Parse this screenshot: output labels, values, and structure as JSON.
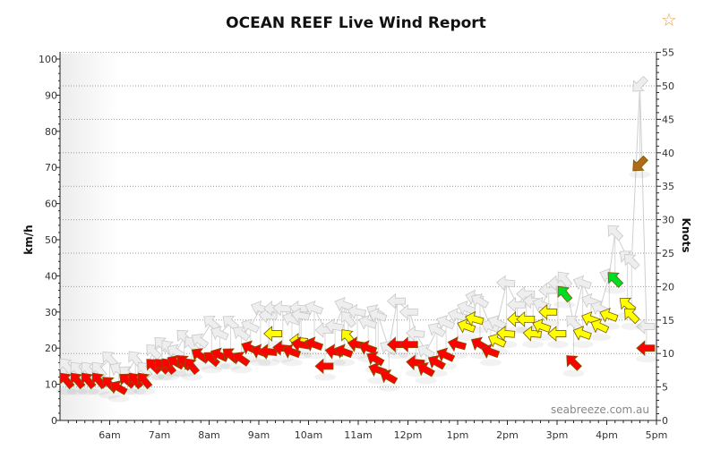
{
  "header": {
    "title": "OCEAN REEF Live Wind Report",
    "favourite_icon": "star-outline-icon"
  },
  "chart_data": {
    "type": "scatter",
    "title": "OCEAN REEF Live Wind Report",
    "ylabel_left": "km/h",
    "ylabel_right": "Knots",
    "ylim_left": [
      0,
      100
    ],
    "ylim_right": [
      0,
      55
    ],
    "yticks_left": [
      "0",
      "10",
      "20",
      "30",
      "40",
      "50",
      "60",
      "70",
      "80",
      "90",
      "100"
    ],
    "yticks_right": [
      "0",
      "5",
      "10",
      "15",
      "20",
      "25",
      "30",
      "35",
      "40",
      "45",
      "50",
      "55"
    ],
    "xticks": [
      "6am",
      "7am",
      "8am",
      "9am",
      "10am",
      "11am",
      "12pm",
      "1pm",
      "2pm",
      "3pm",
      "4pm",
      "5pm"
    ],
    "xlim": [
      "5:00",
      "17:00"
    ],
    "grid": "horizontal dotted at knot ticks",
    "watermark": "seabreeze.com.au",
    "colors": {
      "red": "#ff0000",
      "yellow": "#ffff00",
      "green": "#00dd22",
      "brown": "#b06a1a",
      "gust": "#eeeeee"
    },
    "points": [
      {
        "t": "5:08",
        "avg": 11,
        "gust": 15,
        "dir": 140,
        "color": "red"
      },
      {
        "t": "5:21",
        "avg": 11,
        "gust": 14,
        "dir": 140,
        "color": "red"
      },
      {
        "t": "5:34",
        "avg": 11,
        "gust": 14,
        "dir": 140,
        "color": "red"
      },
      {
        "t": "5:47",
        "avg": 11,
        "gust": 14,
        "dir": 140,
        "color": "red"
      },
      {
        "t": "6:00",
        "avg": 10,
        "gust": 17,
        "dir": 135,
        "color": "red"
      },
      {
        "t": "6:11",
        "avg": 9,
        "gust": 14,
        "dir": 120,
        "color": "red"
      },
      {
        "t": "6:21",
        "avg": 11,
        "gust": 13,
        "dir": 130,
        "color": "red"
      },
      {
        "t": "6:31",
        "avg": 11,
        "gust": 17,
        "dir": 140,
        "color": "red"
      },
      {
        "t": "6:42",
        "avg": 11,
        "gust": 14,
        "dir": 140,
        "color": "red"
      },
      {
        "t": "6:53",
        "avg": 15,
        "gust": 19,
        "dir": 135,
        "color": "red"
      },
      {
        "t": "7:03",
        "avg": 15,
        "gust": 21,
        "dir": 135,
        "color": "red"
      },
      {
        "t": "7:11",
        "avg": 15,
        "gust": 20,
        "dir": 140,
        "color": "red"
      },
      {
        "t": "7:20",
        "avg": 16,
        "gust": 19,
        "dir": 120,
        "color": "red"
      },
      {
        "t": "7:30",
        "avg": 16,
        "gust": 23,
        "dir": 135,
        "color": "red"
      },
      {
        "t": "7:39",
        "avg": 15,
        "gust": 21,
        "dir": 140,
        "color": "red"
      },
      {
        "t": "7:49",
        "avg": 18,
        "gust": 22,
        "dir": 125,
        "color": "red"
      },
      {
        "t": "8:03",
        "avg": 17,
        "gust": 27,
        "dir": 130,
        "color": "red"
      },
      {
        "t": "8:13",
        "avg": 18,
        "gust": 24,
        "dir": 115,
        "color": "red"
      },
      {
        "t": "8:26",
        "avg": 18,
        "gust": 27,
        "dir": 130,
        "color": "red"
      },
      {
        "t": "8:39",
        "avg": 17,
        "gust": 24,
        "dir": 125,
        "color": "red"
      },
      {
        "t": "8:50",
        "avg": 20,
        "gust": 26,
        "dir": 115,
        "color": "red"
      },
      {
        "t": "9:02",
        "avg": 19,
        "gust": 31,
        "dir": 110,
        "color": "red"
      },
      {
        "t": "9:12",
        "avg": 19,
        "gust": 29,
        "dir": 95,
        "color": "red"
      },
      {
        "t": "9:18",
        "avg": 24,
        "gust": 31,
        "dir": 90,
        "color": "yellow"
      },
      {
        "t": "9:29",
        "avg": 20,
        "gust": 31,
        "dir": 95,
        "color": "red"
      },
      {
        "t": "9:40",
        "avg": 19,
        "gust": 28,
        "dir": 110,
        "color": "red"
      },
      {
        "t": "9:49",
        "avg": 22,
        "gust": 31,
        "dir": 95,
        "color": "yellow"
      },
      {
        "t": "9:51",
        "avg": 21,
        "gust": 29,
        "dir": 100,
        "color": "red"
      },
      {
        "t": "10:07",
        "avg": 21,
        "gust": 31,
        "dir": 110,
        "color": "red"
      },
      {
        "t": "10:20",
        "avg": 15,
        "gust": 25,
        "dir": 90,
        "color": "red"
      },
      {
        "t": "10:32",
        "avg": 19,
        "gust": 26,
        "dir": 100,
        "color": "red"
      },
      {
        "t": "10:43",
        "avg": 19,
        "gust": 32,
        "dir": 110,
        "color": "red"
      },
      {
        "t": "10:48",
        "avg": 23,
        "gust": 28,
        "dir": 140,
        "color": "yellow"
      },
      {
        "t": "10:59",
        "avg": 21,
        "gust": 30,
        "dir": 100,
        "color": "red"
      },
      {
        "t": "11:12",
        "avg": 20,
        "gust": 27,
        "dir": 110,
        "color": "red"
      },
      {
        "t": "11:21",
        "avg": 17,
        "gust": 30,
        "dir": 120,
        "color": "red"
      },
      {
        "t": "11:24",
        "avg": 14,
        "gust": 29,
        "dir": 110,
        "color": "red"
      },
      {
        "t": "11:37",
        "avg": 12,
        "gust": 20,
        "dir": 120,
        "color": "red"
      },
      {
        "t": "11:47",
        "avg": 21,
        "gust": 33,
        "dir": 90,
        "color": "red"
      },
      {
        "t": "12:02",
        "avg": 21,
        "gust": 30,
        "dir": 90,
        "color": "red"
      },
      {
        "t": "12:10",
        "avg": 16,
        "gust": 24,
        "dir": 95,
        "color": "red"
      },
      {
        "t": "12:22",
        "avg": 14,
        "gust": 19,
        "dir": 120,
        "color": "red"
      },
      {
        "t": "12:35",
        "avg": 16,
        "gust": 25,
        "dir": 120,
        "color": "red"
      },
      {
        "t": "12:46",
        "avg": 18,
        "gust": 27,
        "dir": 115,
        "color": "red"
      },
      {
        "t": "13:00",
        "avg": 21,
        "gust": 29,
        "dir": 105,
        "color": "red"
      },
      {
        "t": "13:11",
        "avg": 26,
        "gust": 31,
        "dir": 110,
        "color": "yellow"
      },
      {
        "t": "13:21",
        "avg": 28,
        "gust": 34,
        "dir": 105,
        "color": "yellow"
      },
      {
        "t": "13:27",
        "avg": 21,
        "gust": 33,
        "dir": 120,
        "color": "red"
      },
      {
        "t": "13:40",
        "avg": 19,
        "gust": 26,
        "dir": 110,
        "color": "red"
      },
      {
        "t": "13:48",
        "avg": 22,
        "gust": 27,
        "dir": 115,
        "color": "yellow"
      },
      {
        "t": "13:59",
        "avg": 24,
        "gust": 38,
        "dir": 95,
        "color": "yellow"
      },
      {
        "t": "14:12",
        "avg": 28,
        "gust": 32,
        "dir": 90,
        "color": "yellow"
      },
      {
        "t": "14:23",
        "avg": 28,
        "gust": 35,
        "dir": 90,
        "color": "yellow"
      },
      {
        "t": "14:31",
        "avg": 24,
        "gust": 33,
        "dir": 95,
        "color": "yellow"
      },
      {
        "t": "14:42",
        "avg": 26,
        "gust": 32,
        "dir": 110,
        "color": "yellow"
      },
      {
        "t": "14:50",
        "avg": 30,
        "gust": 36,
        "dir": 90,
        "color": "yellow"
      },
      {
        "t": "15:01",
        "avg": 24,
        "gust": 38,
        "dir": 90,
        "color": "yellow"
      },
      {
        "t": "15:09",
        "avg": 35,
        "gust": 39,
        "dir": 140,
        "color": "green"
      },
      {
        "t": "15:20",
        "avg": 16,
        "gust": 27,
        "dir": 135,
        "color": "red"
      },
      {
        "t": "15:31",
        "avg": 24,
        "gust": 38,
        "dir": 110,
        "color": "yellow"
      },
      {
        "t": "15:41",
        "avg": 28,
        "gust": 33,
        "dir": 110,
        "color": "yellow"
      },
      {
        "t": "15:52",
        "avg": 26,
        "gust": 31,
        "dir": 115,
        "color": "yellow"
      },
      {
        "t": "16:03",
        "avg": 29,
        "gust": 40,
        "dir": 110,
        "color": "yellow"
      },
      {
        "t": "16:10",
        "avg": 39,
        "gust": 52,
        "dir": 135,
        "color": "green"
      },
      {
        "t": "16:25",
        "avg": 32,
        "gust": 45,
        "dir": 130,
        "color": "yellow"
      },
      {
        "t": "16:30",
        "avg": 29,
        "gust": 44,
        "dir": 135,
        "color": "yellow"
      },
      {
        "t": "16:40",
        "avg": 71,
        "gust": 93,
        "dir": 45,
        "color": "brown"
      },
      {
        "t": "16:48",
        "avg": 20,
        "gust": 26,
        "dir": 90,
        "color": "red"
      }
    ]
  }
}
